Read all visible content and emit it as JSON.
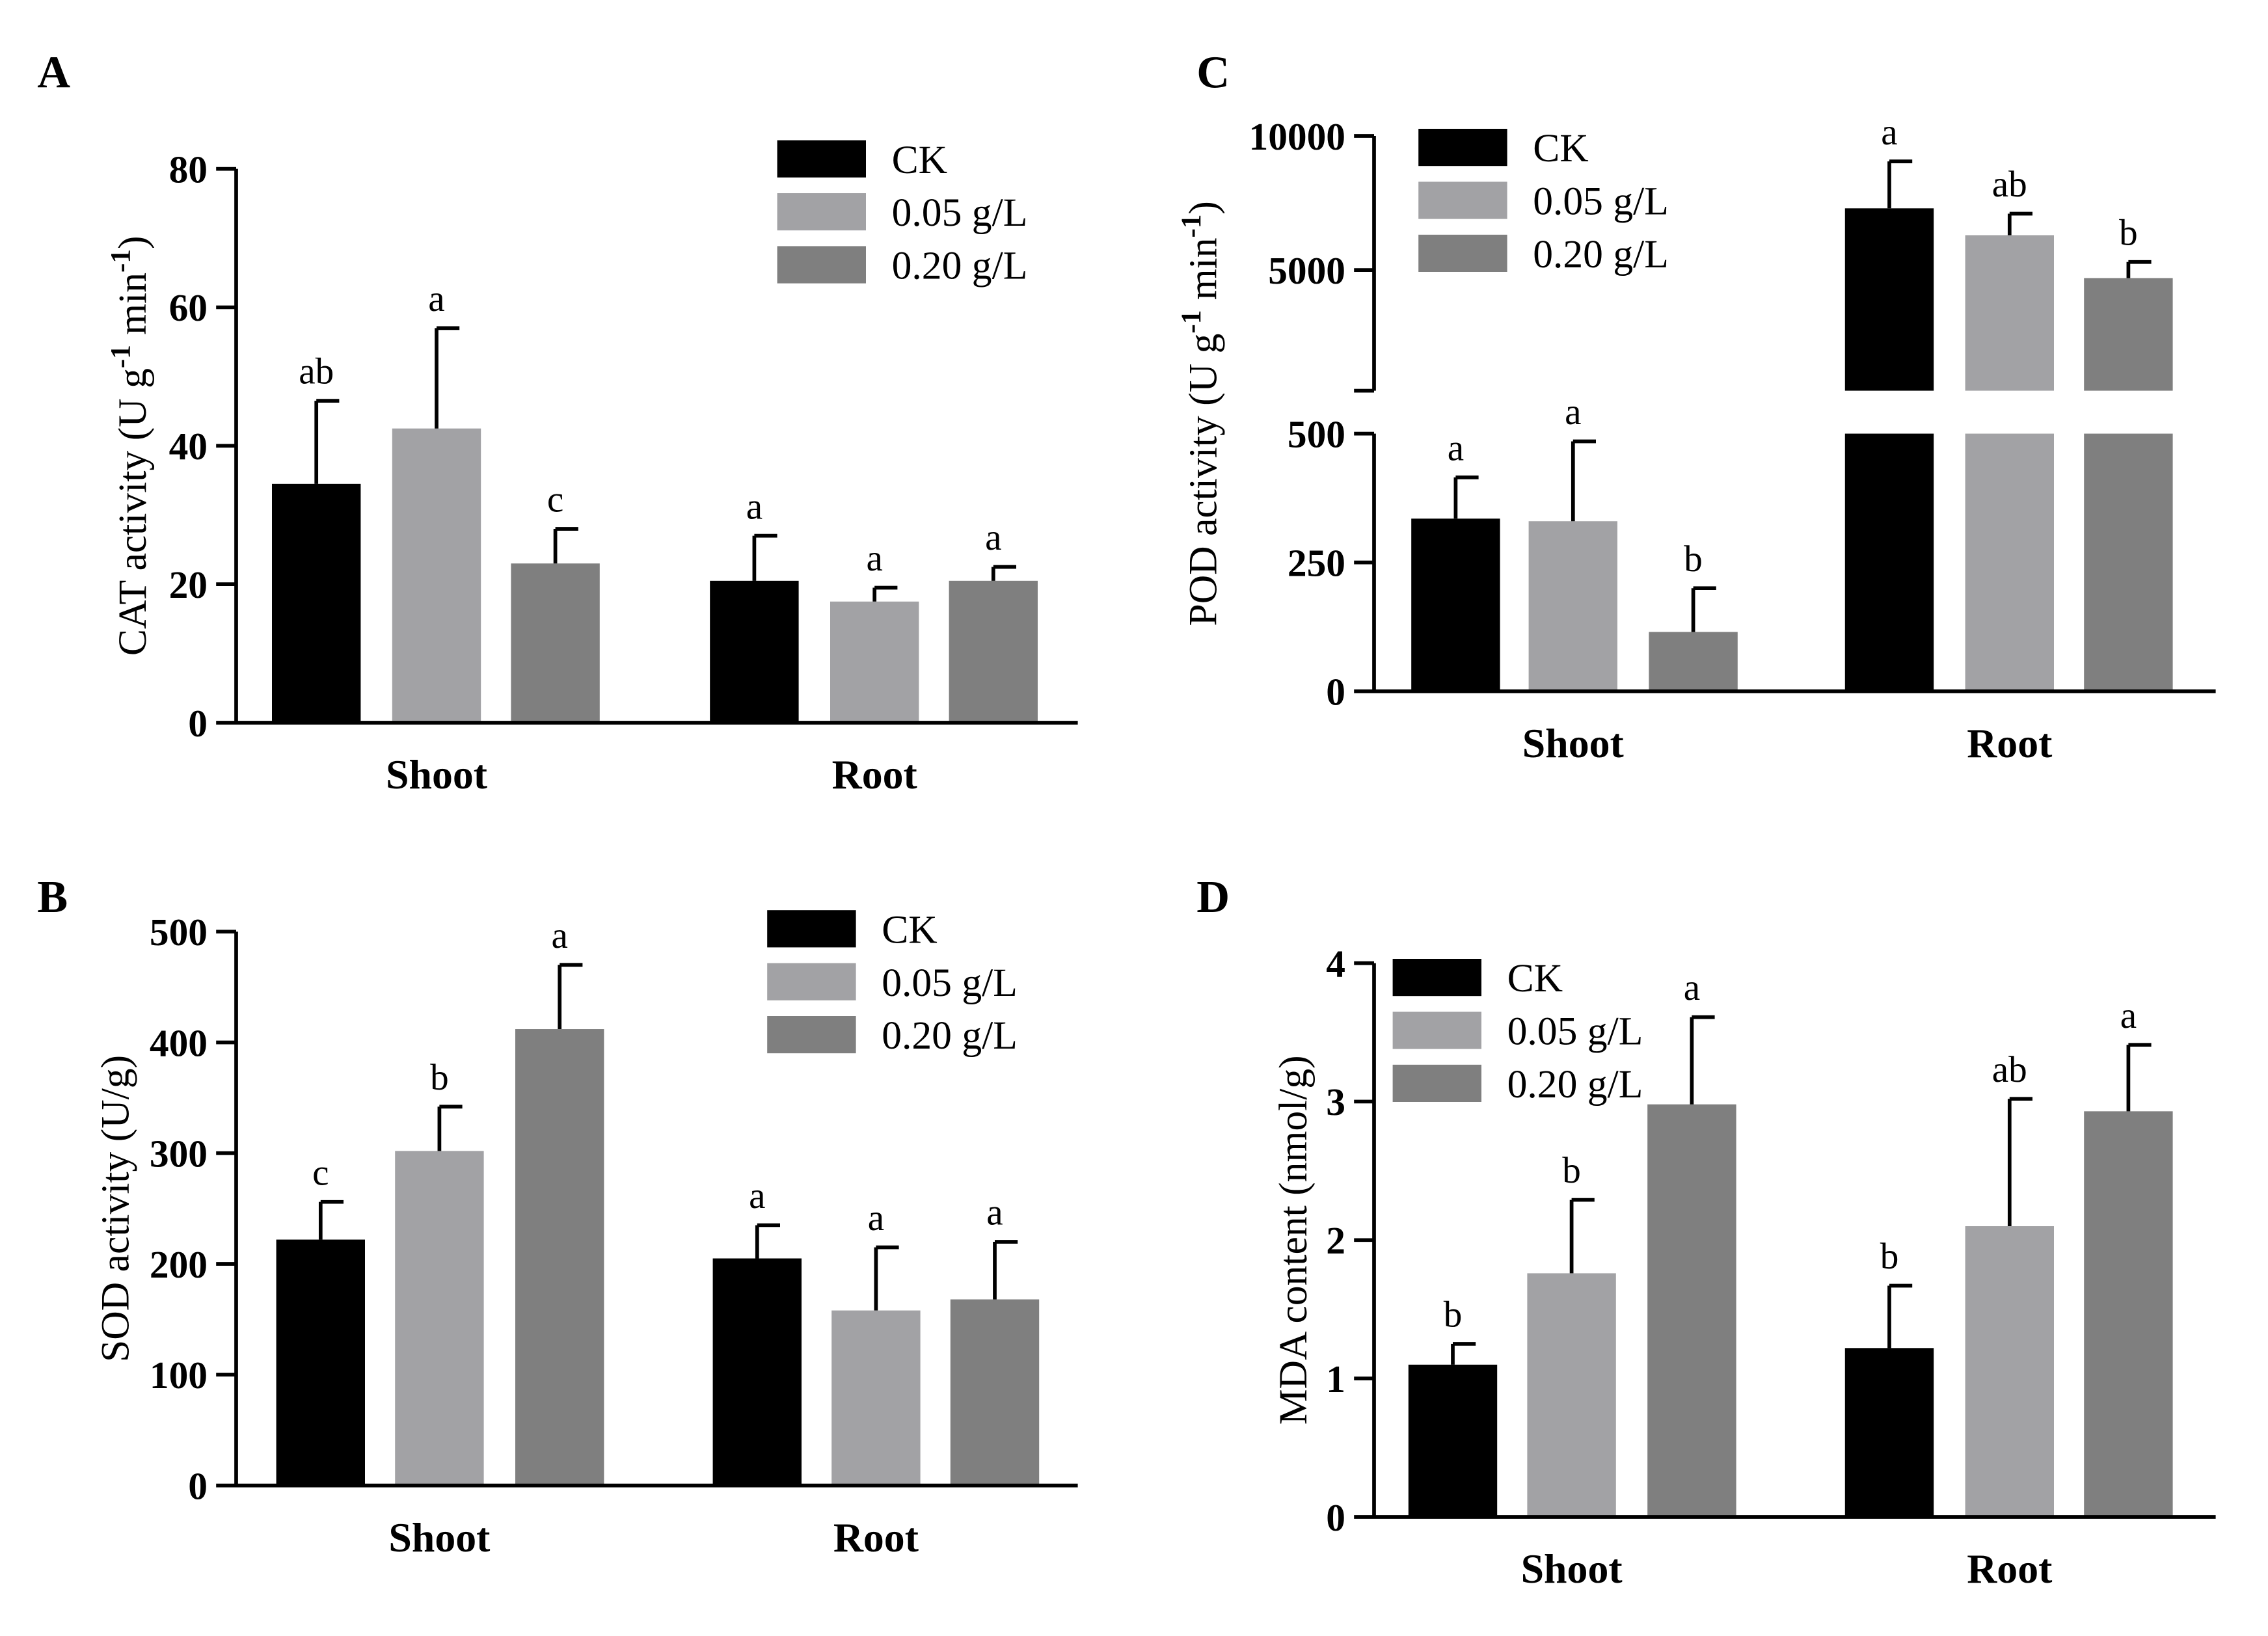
{
  "colors": {
    "CK": "#000000",
    "0.05 g/L": "#a2a2a5",
    "0.20 g/L": "#7f7f7f",
    "axis": "#000000"
  },
  "chart_data": [
    {
      "panel": "A",
      "type": "bar",
      "title": "",
      "ylabel": "CAT activity (U g-1 min-1)",
      "ylabel_parts": [
        "CAT activity (U g",
        "-1",
        " min",
        "-1",
        ")"
      ],
      "xlabel": "",
      "categories": [
        "Shoot",
        "Root"
      ],
      "legend": [
        "CK",
        "0.05 g/L",
        "0.20 g/L"
      ],
      "legend_position": "top-right",
      "ylim": [
        0,
        80
      ],
      "yticks": [
        0,
        20,
        40,
        60,
        80
      ],
      "ytick_labels": [
        "0",
        "20",
        "40",
        "60",
        "80"
      ],
      "series": [
        {
          "name": "CK",
          "values": [
            34.5,
            20.5
          ],
          "errors": [
            12.0,
            6.5
          ],
          "letters": [
            "ab",
            "a"
          ]
        },
        {
          "name": "0.05 g/L",
          "values": [
            42.5,
            17.5
          ],
          "errors": [
            14.5,
            2.0
          ],
          "letters": [
            "a",
            "a"
          ]
        },
        {
          "name": "0.20 g/L",
          "values": [
            23.0,
            20.5
          ],
          "errors": [
            5.0,
            2.0
          ],
          "letters": [
            "c",
            "a"
          ]
        }
      ]
    },
    {
      "panel": "B",
      "type": "bar",
      "title": "",
      "ylabel": "SOD activity (U/g)",
      "ylabel_parts": [
        "SOD activity (U/g)"
      ],
      "xlabel": "",
      "categories": [
        "Shoot",
        "Root"
      ],
      "legend": [
        "CK",
        "0.05 g/L",
        "0.20 g/L"
      ],
      "legend_position": "top-right",
      "ylim": [
        0,
        500
      ],
      "yticks": [
        0,
        100,
        200,
        300,
        400,
        500
      ],
      "ytick_labels": [
        "0",
        "100",
        "200",
        "300",
        "400",
        "500"
      ],
      "series": [
        {
          "name": "CK",
          "values": [
            222,
            205
          ],
          "errors": [
            34,
            30
          ],
          "letters": [
            "c",
            "a"
          ]
        },
        {
          "name": "0.05 g/L",
          "values": [
            302,
            158
          ],
          "errors": [
            40,
            57
          ],
          "letters": [
            "b",
            "a"
          ]
        },
        {
          "name": "0.20 g/L",
          "values": [
            412,
            168
          ],
          "errors": [
            58,
            52
          ],
          "letters": [
            "a",
            "a"
          ]
        }
      ]
    },
    {
      "panel": "C",
      "type": "bar",
      "title": "",
      "ylabel": "POD activity (U g-1 min-1)",
      "ylabel_parts": [
        "POD activity (U g",
        "-1",
        " min",
        "-1",
        ")"
      ],
      "xlabel": "",
      "categories": [
        "Shoot",
        "Root"
      ],
      "legend": [
        "CK",
        "0.05 g/L",
        "0.20 g/L"
      ],
      "legend_position": "top-left",
      "ylim": [
        0,
        10000
      ],
      "axis_break": {
        "lower_range": [
          0,
          500
        ],
        "upper_range": [
          500,
          10000
        ]
      },
      "yticks": [
        0,
        250,
        500,
        5000,
        10000
      ],
      "ytick_labels": [
        "0",
        "250",
        "500",
        "5000",
        "10000"
      ],
      "series": [
        {
          "name": "CK",
          "values": [
            335,
            7300
          ],
          "errors": [
            80,
            1750
          ],
          "letters": [
            "a",
            "a"
          ]
        },
        {
          "name": "0.05 g/L",
          "values": [
            330,
            6300
          ],
          "errors": [
            155,
            800
          ],
          "letters": [
            "a",
            "ab"
          ]
        },
        {
          "name": "0.20 g/L",
          "values": [
            115,
            4700
          ],
          "errors": [
            85,
            600
          ],
          "letters": [
            "b",
            "b"
          ]
        }
      ]
    },
    {
      "panel": "D",
      "type": "bar",
      "title": "",
      "ylabel": "MDA content (nmol/g)",
      "ylabel_parts": [
        "MDA content (nmol/g)"
      ],
      "xlabel": "",
      "categories": [
        "Shoot",
        "Root"
      ],
      "legend": [
        "CK",
        "0.05 g/L",
        "0.20 g/L"
      ],
      "legend_position": "top-left",
      "ylim": [
        0,
        4
      ],
      "yticks": [
        0,
        1,
        2,
        3,
        4
      ],
      "ytick_labels": [
        "0",
        "1",
        "2",
        "3",
        "4"
      ],
      "series": [
        {
          "name": "CK",
          "values": [
            1.1,
            1.22
          ],
          "errors": [
            0.15,
            0.45
          ],
          "letters": [
            "b",
            "b"
          ]
        },
        {
          "name": "0.05 g/L",
          "values": [
            1.76,
            2.1
          ],
          "errors": [
            0.53,
            0.92
          ],
          "letters": [
            "b",
            "ab"
          ]
        },
        {
          "name": "0.20 g/L",
          "values": [
            2.98,
            2.93
          ],
          "errors": [
            0.63,
            0.48
          ],
          "letters": [
            "a",
            "a"
          ]
        }
      ]
    }
  ]
}
